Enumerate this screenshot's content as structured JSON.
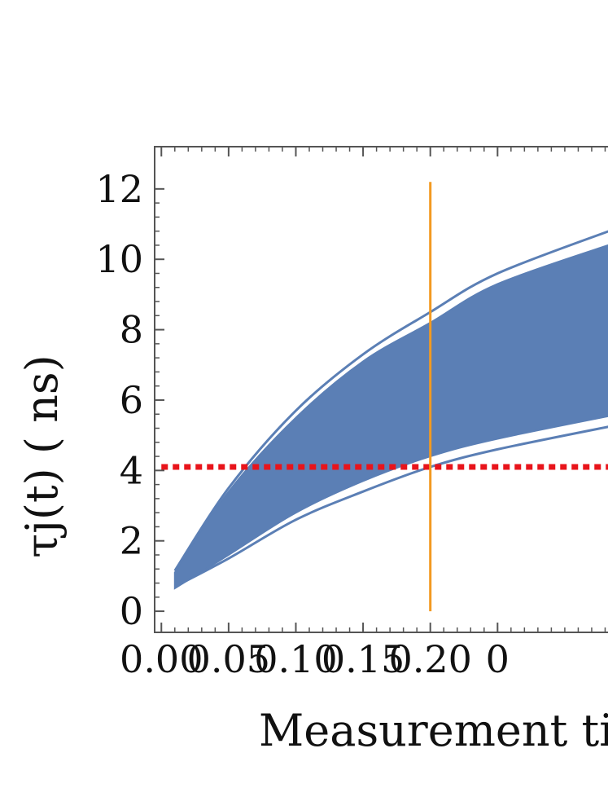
{
  "chart_data": {
    "type": "line",
    "xlabel": "Measurement time",
    "ylabel": "τj(t) ( ns)",
    "x_ticks": [
      "0.00",
      "0.05",
      "0.10",
      "0.15",
      "0.20",
      "0"
    ],
    "y_ticks": [
      "0",
      "2",
      "4",
      "6",
      "8",
      "10",
      "12"
    ],
    "xlim": [
      -0.005,
      0.34
    ],
    "ylim": [
      -0.6,
      13.2
    ],
    "grid": false,
    "legend": "none",
    "series": [
      {
        "role": "band-upper",
        "x": [
          0.01,
          0.05,
          0.1,
          0.15,
          0.2,
          0.25,
          0.34
        ],
        "y": [
          1.1,
          3.4,
          5.5,
          7.1,
          8.2,
          9.3,
          10.5
        ]
      },
      {
        "role": "band-lower",
        "x": [
          0.01,
          0.05,
          0.1,
          0.15,
          0.2,
          0.25,
          0.34
        ],
        "y": [
          0.65,
          1.6,
          2.8,
          3.7,
          4.4,
          4.9,
          5.6
        ]
      },
      {
        "role": "upper-curve",
        "x": [
          0.01,
          0.05,
          0.1,
          0.15,
          0.2,
          0.25,
          0.34
        ],
        "y": [
          1.15,
          3.5,
          5.7,
          7.3,
          8.5,
          9.6,
          10.9
        ]
      },
      {
        "role": "lower-curve",
        "x": [
          0.01,
          0.05,
          0.1,
          0.15,
          0.2,
          0.25,
          0.34
        ],
        "y": [
          0.7,
          1.5,
          2.6,
          3.4,
          4.1,
          4.6,
          5.3
        ]
      }
    ],
    "hline": {
      "y": 4.1,
      "style": "dotted",
      "color": "#e8141b"
    },
    "vline": {
      "x": 0.2,
      "y_range": [
        0,
        12.2
      ],
      "color": "#f39a21"
    },
    "colors": {
      "band": "#5b7fb5",
      "axes": "#555555",
      "text": "#111111"
    }
  }
}
